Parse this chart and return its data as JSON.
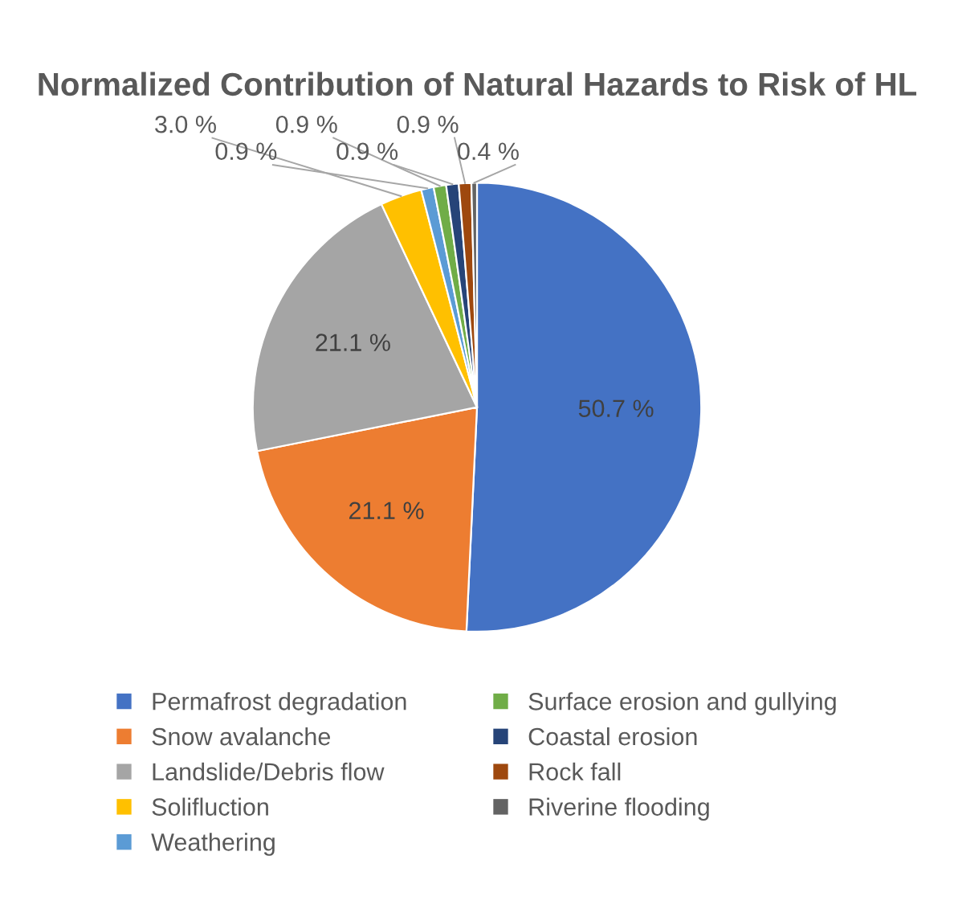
{
  "chart_data": {
    "type": "pie",
    "title": "Normalized Contribution of Natural Hazards to Risk of HL",
    "categories": [
      "Permafrost degradation",
      "Snow avalanche",
      "Landslide/Debris flow",
      "Solifluction",
      "Weathering",
      "Surface erosion and gullying",
      "Coastal erosion",
      "Rock fall",
      "Riverine flooding"
    ],
    "values": [
      50.7,
      21.1,
      21.1,
      3.0,
      0.9,
      0.9,
      0.9,
      0.9,
      0.4
    ],
    "value_labels": [
      "50.7 %",
      "21.1 %",
      "21.1 %",
      "3.0 %",
      "0.9 %",
      "0.9 %",
      "0.9 %",
      "0.9 %",
      "0.4 %"
    ],
    "colors": [
      "#4472c4",
      "#ed7d31",
      "#a5a5a5",
      "#ffc000",
      "#5b9bd5",
      "#70ad47",
      "#264478",
      "#9e480e",
      "#636363"
    ],
    "legend": "bottom"
  }
}
